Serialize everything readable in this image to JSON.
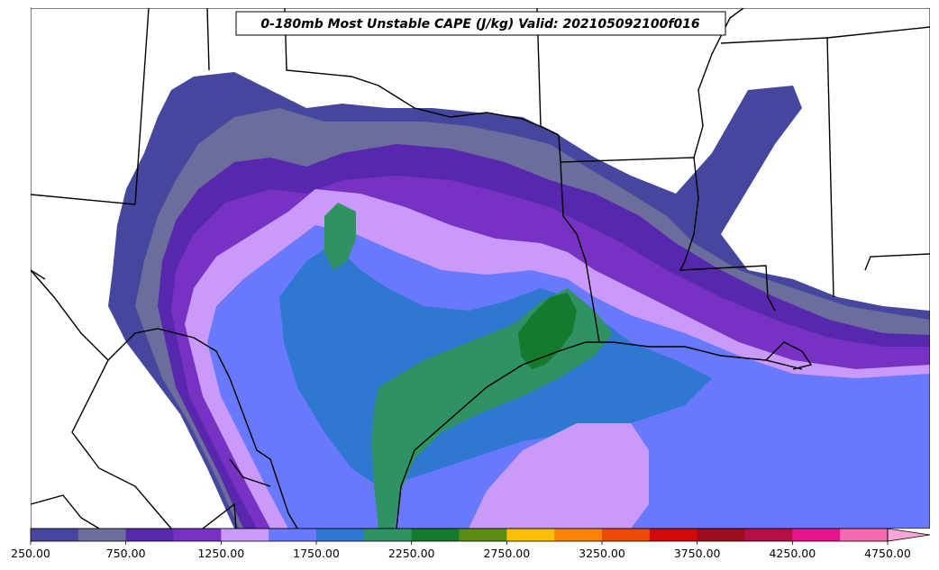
{
  "title": "0-180mb Most Unstable CAPE (J/kg) Valid: 202105092100f016",
  "colorbar": {
    "tick_labels": [
      "250.00",
      "750.00",
      "1250.00",
      "1750.00",
      "2250.00",
      "2750.00",
      "3250.00",
      "3750.00",
      "4250.00",
      "4750.00"
    ],
    "colors": [
      "#45479e",
      "#6b6d9c",
      "#5727ad",
      "#7732c3",
      "#c99af9",
      "#6979fc",
      "#2f77d0",
      "#2e9264",
      "#167a2c",
      "#5b8e12",
      "#fcbf02",
      "#fa8402",
      "#ee4a06",
      "#d50808",
      "#9e0c1d",
      "#b90d47",
      "#e8138a",
      "#f76ab2",
      "#f7a6d6"
    ],
    "min": 250,
    "max": 4750,
    "step": 250
  },
  "map": {
    "state_lines": "black",
    "background": "white"
  }
}
